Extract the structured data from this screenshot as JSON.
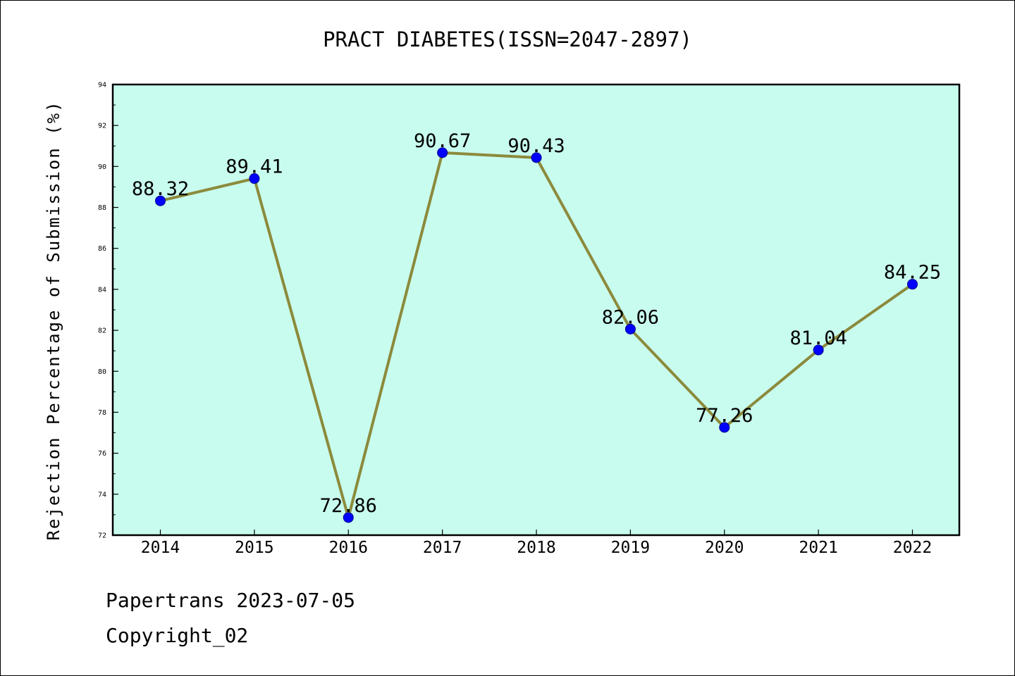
{
  "chart_data": {
    "type": "line",
    "title": "PRACT DIABETES(ISSN=2047-2897)",
    "xlabel": "",
    "ylabel": "Rejection Percentage of Submission (%)",
    "categories": [
      "2014",
      "2015",
      "2016",
      "2017",
      "2018",
      "2019",
      "2020",
      "2021",
      "2022"
    ],
    "values": [
      88.32,
      89.41,
      72.86,
      90.67,
      90.43,
      82.06,
      77.26,
      81.04,
      84.25
    ],
    "data_labels": [
      "88.32",
      "89.41",
      "72.86",
      "90.67",
      "90.43",
      "82.06",
      "77.26",
      "81.04",
      "84.25"
    ],
    "ylim": [
      72,
      94
    ],
    "yticks": [
      72,
      74,
      76,
      78,
      80,
      82,
      84,
      86,
      88,
      90,
      92,
      94
    ],
    "grid": false,
    "legend": "none",
    "colors": {
      "plot_background": "#c8fcee",
      "line": "#8c8a3c",
      "marker": "#0000ff",
      "marker_edge": "#00008b"
    }
  },
  "footer": {
    "line1": "Papertrans 2023-07-05",
    "line2": "Copyright_02"
  }
}
